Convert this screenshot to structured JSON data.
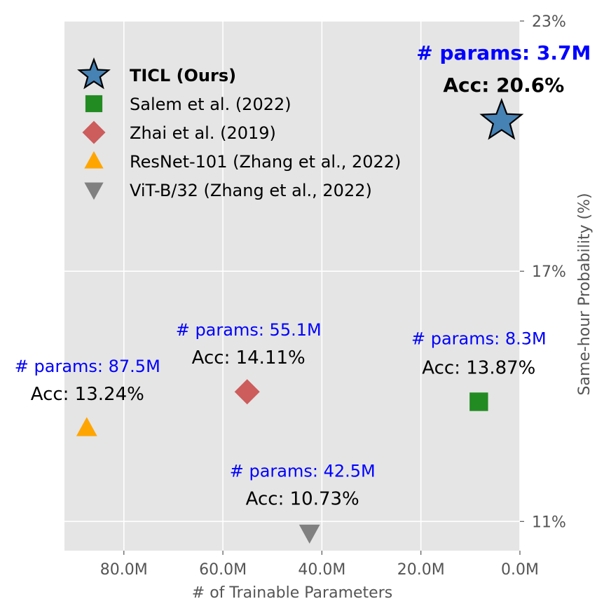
{
  "chart_data": {
    "type": "scatter",
    "title": "",
    "xlabel": "# of Trainable Parameters",
    "ylabel": "Same-hour Probability (%)",
    "x_unit": "M params",
    "x_inverted": true,
    "xlim": [
      92.0,
      0.0
    ],
    "ylim": [
      10.3,
      23.0
    ],
    "x_ticks": [
      {
        "value": 80,
        "label": "80.0M"
      },
      {
        "value": 60,
        "label": "60.0M"
      },
      {
        "value": 40,
        "label": "40.0M"
      },
      {
        "value": 20,
        "label": "20.0M"
      },
      {
        "value": 0,
        "label": "0.0M"
      }
    ],
    "y_ticks": [
      {
        "value": 23,
        "label": "23%"
      },
      {
        "value": 17,
        "label": "17%"
      },
      {
        "value": 11,
        "label": "11%"
      }
    ],
    "y_axis_side": "right",
    "grid": true,
    "background": "#e5e5e5",
    "legend_position": "top-left",
    "points": [
      {
        "name": "TICL (Ours)",
        "x": 3.7,
        "y": 20.6,
        "marker": "star",
        "color": "#4682b4",
        "edge": "#000000",
        "bold": true,
        "params_label": "# params: 3.7M",
        "acc_label": "Acc: 20.6%"
      },
      {
        "name": "Salem et al. (2022)",
        "x": 8.3,
        "y": 13.87,
        "marker": "square",
        "color": "#228b22",
        "edge": "",
        "bold": false,
        "params_label": "# params: 8.3M",
        "acc_label": "Acc: 13.87%"
      },
      {
        "name": "Zhai et al. (2019)",
        "x": 55.1,
        "y": 14.11,
        "marker": "diamond",
        "color": "#cd5c5c",
        "edge": "",
        "bold": false,
        "params_label": "# params: 55.1M",
        "acc_label": "Acc: 14.11%"
      },
      {
        "name": "ResNet-101 (Zhang et al., 2022)",
        "x": 87.5,
        "y": 13.24,
        "marker": "triangle-up",
        "color": "#ffa500",
        "edge": "",
        "bold": false,
        "params_label": "# params: 87.5M",
        "acc_label": "Acc: 13.24%"
      },
      {
        "name": "ViT-B/32 (Zhang et al., 2022)",
        "x": 42.5,
        "y": 10.73,
        "marker": "triangle-down",
        "color": "#808080",
        "edge": "",
        "bold": false,
        "params_label": "# params: 42.5M",
        "acc_label": "Acc: 10.73%"
      }
    ]
  }
}
